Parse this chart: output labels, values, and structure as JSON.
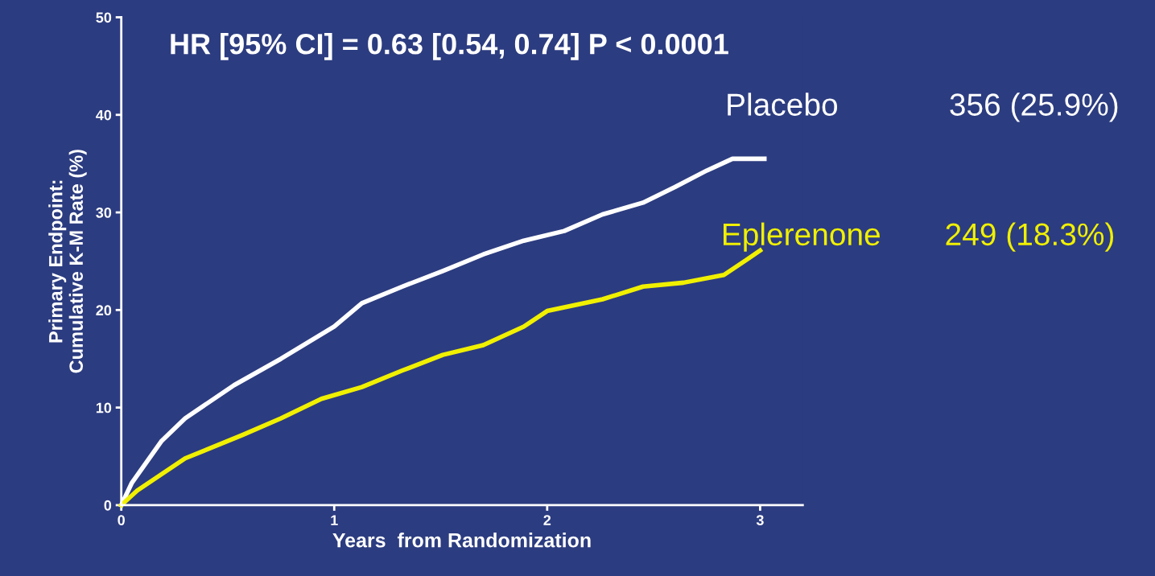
{
  "chart_data": {
    "type": "line",
    "title": "HR [95% CI] = 0.63 [0.54, 0.74] P < 0.0001",
    "xlabel": "Years  from Randomization",
    "ylabel": "Primary Endpoint:\nCumulative K-M Rate (%)",
    "series": [
      {
        "name": "Placebo",
        "color": "#ffffff",
        "x": [
          0,
          0.05,
          0.19,
          0.3,
          0.53,
          0.75,
          1.0,
          1.13,
          1.32,
          1.51,
          1.7,
          1.89,
          2.08,
          2.26,
          2.45,
          2.6,
          2.75,
          2.87,
          3.02
        ],
        "values": [
          0,
          2.3,
          6.6,
          8.9,
          12.3,
          15,
          18.3,
          20.7,
          22.4,
          24,
          25.7,
          27.1,
          28.1,
          29.8,
          31,
          32.6,
          34.3,
          35.5,
          35.5
        ]
      },
      {
        "name": "Eplerenone",
        "color": "#f0f000",
        "x": [
          0,
          0.075,
          0.3,
          0.57,
          0.75,
          0.94,
          1.13,
          1.32,
          1.51,
          1.7,
          1.89,
          2.0,
          2.26,
          2.45,
          2.64,
          2.83,
          2.94,
          3.0
        ],
        "values": [
          0,
          1.5,
          4.8,
          7.2,
          8.9,
          10.9,
          12.1,
          13.8,
          15.4,
          16.4,
          18.3,
          19.9,
          21.1,
          22.4,
          22.8,
          23.6,
          25.2,
          26.1
        ]
      }
    ],
    "annotations": [
      "356 (25.9%)",
      "249 (18.3%)"
    ],
    "xlim": [
      0,
      3.2
    ],
    "xticks": [
      0,
      1,
      2,
      3
    ],
    "ylim": [
      0,
      50
    ],
    "yticks": [
      0,
      10,
      20,
      30,
      40,
      50
    ],
    "grid": false,
    "legend": false,
    "marker": "none",
    "line_style": "solid"
  }
}
